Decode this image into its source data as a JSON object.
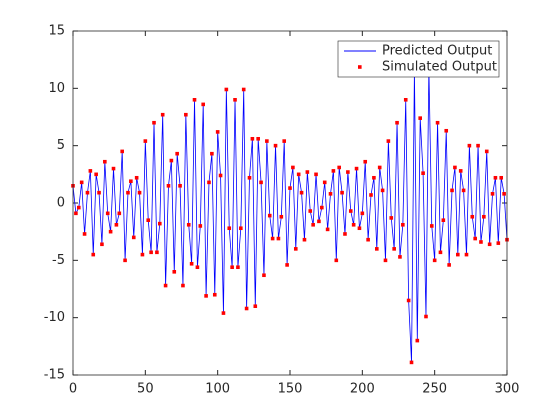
{
  "chart_data": {
    "type": "line",
    "x": [
      0,
      2,
      4,
      6,
      8,
      10,
      12,
      14,
      16,
      18,
      20,
      22,
      24,
      26,
      28,
      30,
      32,
      34,
      36,
      38,
      40,
      42,
      44,
      46,
      48,
      50,
      52,
      54,
      56,
      58,
      60,
      62,
      64,
      66,
      68,
      70,
      72,
      74,
      76,
      78,
      80,
      82,
      84,
      86,
      88,
      90,
      92,
      94,
      96,
      98,
      100,
      102,
      104,
      106,
      108,
      110,
      112,
      114,
      116,
      118,
      120,
      122,
      124,
      126,
      128,
      130,
      132,
      134,
      136,
      138,
      140,
      142,
      144,
      146,
      148,
      150,
      152,
      154,
      156,
      158,
      160,
      162,
      164,
      166,
      168,
      170,
      172,
      174,
      176,
      178,
      180,
      182,
      184,
      186,
      188,
      190,
      192,
      194,
      196,
      198,
      200,
      202,
      204,
      206,
      208,
      210,
      212,
      214,
      216,
      218,
      220,
      222,
      224,
      226,
      228,
      230,
      232,
      234,
      236,
      238,
      240,
      242,
      244,
      246,
      248,
      250,
      252,
      254,
      256,
      258,
      260,
      262,
      264,
      266,
      268,
      270,
      272,
      274,
      276,
      278,
      280,
      282,
      284,
      286,
      288,
      290,
      292,
      294,
      296,
      298,
      300
    ],
    "series": [
      {
        "name": "Predicted Output",
        "color": "#0000ff",
        "style": "line",
        "values": [
          1.5,
          -0.9,
          -0.4,
          1.8,
          -2.7,
          0.9,
          2.8,
          -4.5,
          2.5,
          0.9,
          -3.6,
          3.6,
          -0.9,
          -2.5,
          3,
          -1.9,
          -0.9,
          4.5,
          -5,
          0.9,
          1.9,
          -3,
          2.2,
          0.9,
          -4.5,
          5.4,
          -1.5,
          -4.3,
          7,
          -4.3,
          -1.8,
          7.7,
          -7.2,
          1.5,
          3.7,
          -6,
          4.3,
          1.5,
          -7.2,
          7.7,
          -1.9,
          -5.3,
          9,
          -5.6,
          -2,
          8.6,
          -8.1,
          1.8,
          4.3,
          -8,
          6.2,
          2.4,
          -9.6,
          9.9,
          -2.2,
          -5.6,
          9,
          -5.6,
          -2.2,
          9.9,
          -9.2,
          2.2,
          5.6,
          -9,
          5.6,
          1.8,
          -6.3,
          5.4,
          -1.1,
          -3.1,
          5,
          -3.1,
          -1.2,
          5.4,
          -5.4,
          1.3,
          3.1,
          -4,
          2.5,
          0.9,
          -3.2,
          2.7,
          -0.7,
          -1.9,
          2.5,
          -1.6,
          -0.4,
          1.8,
          -2.3,
          0.8,
          2.8,
          -5,
          3.1,
          0.9,
          -2.7,
          2.7,
          -0.7,
          -1.9,
          3,
          -2.2,
          -0.9,
          3.6,
          -3.2,
          0.7,
          2.2,
          -4,
          3.1,
          1.1,
          -5,
          5.4,
          -1.3,
          -4,
          7,
          -4.7,
          -1.9,
          9,
          -8.5,
          -13.9,
          11.6,
          -12,
          7.4,
          2.6,
          -9.9,
          11.8,
          -2,
          -5,
          7,
          -4.3,
          -1.5,
          6.3,
          -5.4,
          1.1,
          3.1,
          -4.5,
          2.8,
          1.1,
          -4.5,
          5,
          -1.2,
          -3.1,
          5,
          -3.4,
          -1.2,
          4.5,
          -3.6,
          0.8,
          2.2,
          -3.5,
          2.2,
          0.8,
          -3.2
        ]
      },
      {
        "name": "Simulated Output",
        "color": "#ff0000",
        "style": "marker",
        "values": [
          1.5,
          -0.9,
          -0.4,
          1.8,
          -2.7,
          0.9,
          2.8,
          -4.5,
          2.5,
          0.9,
          -3.6,
          3.6,
          -0.9,
          -2.5,
          3,
          -1.9,
          -0.9,
          4.5,
          -5,
          0.9,
          1.9,
          -3,
          2.2,
          0.9,
          -4.5,
          5.4,
          -1.5,
          -4.3,
          7,
          -4.3,
          -1.8,
          7.7,
          -7.2,
          1.5,
          3.7,
          -6,
          4.3,
          1.5,
          -7.2,
          7.7,
          -1.9,
          -5.3,
          9,
          -5.6,
          -2,
          8.6,
          -8.1,
          1.8,
          4.3,
          -8,
          6.2,
          2.4,
          -9.6,
          9.9,
          -2.2,
          -5.6,
          9,
          -5.6,
          -2.2,
          9.9,
          -9.2,
          2.2,
          5.6,
          -9,
          5.6,
          1.8,
          -6.3,
          5.4,
          -1.1,
          -3.1,
          5,
          -3.1,
          -1.2,
          5.4,
          -5.4,
          1.3,
          3.1,
          -4,
          2.5,
          0.9,
          -3.2,
          2.7,
          -0.7,
          -1.9,
          2.5,
          -1.6,
          -0.4,
          1.8,
          -2.3,
          0.8,
          2.8,
          -5,
          3.1,
          0.9,
          -2.7,
          2.7,
          -0.7,
          -1.9,
          3,
          -2.2,
          -0.9,
          3.6,
          -3.2,
          0.7,
          2.2,
          -4,
          3.1,
          1.1,
          -5,
          5.4,
          -1.3,
          -4,
          7,
          -4.7,
          -1.9,
          9,
          -8.5,
          -13.9,
          11.6,
          -12,
          7.4,
          2.6,
          -9.9,
          11.8,
          -2,
          -5,
          7,
          -4.3,
          -1.5,
          6.3,
          -5.4,
          1.1,
          3.1,
          -4.5,
          2.8,
          1.1,
          -4.5,
          5,
          -1.2,
          -3.1,
          5,
          -3.4,
          -1.2,
          4.5,
          -3.6,
          0.8,
          2.2,
          -3.5,
          2.2,
          0.8,
          -3.2
        ]
      }
    ],
    "xlim": [
      0,
      300
    ],
    "xticks": [
      0,
      50,
      100,
      150,
      200,
      250,
      300
    ],
    "ylim": [
      -15,
      15
    ],
    "yticks": [
      -15,
      -10,
      -5,
      0,
      5,
      10,
      15
    ],
    "grid": false,
    "legend": "northeast"
  }
}
